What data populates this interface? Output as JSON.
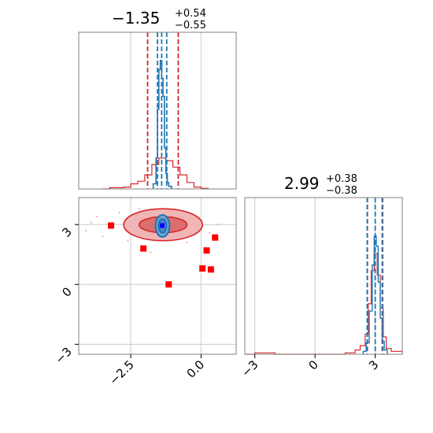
{
  "chart_data": {
    "type": "corner",
    "colors": {
      "primary": "#d62728",
      "secondary": "#1f77b4",
      "marker": "#ff0000",
      "truth": "#0000ff",
      "grid": "#cccccc",
      "frame": "#808080"
    },
    "params": [
      {
        "title_value": "−1.35",
        "title_plus": "+0.54",
        "title_minus": "−0.55",
        "median": -1.35,
        "low": -1.9,
        "high": -0.81
      },
      {
        "title_value": "2.99",
        "title_plus": "+0.38",
        "title_minus": "−0.38",
        "median": 2.99,
        "low": 2.61,
        "high": 3.37
      }
    ],
    "param0_axis": {
      "range": [
        -4.35,
        1.25
      ],
      "ticks": [
        -2.5,
        0.0
      ],
      "tick_labels": [
        "−2.5",
        "0.0"
      ]
    },
    "param1_axis": {
      "range": [
        -3.5,
        4.35
      ],
      "ticks": [
        -3,
        0,
        3
      ],
      "tick_labels": [
        "−3",
        "0",
        "3"
      ]
    },
    "hist_red_param0": {
      "bins": [
        -3.5,
        -3.25,
        -3.0,
        -2.75,
        -2.5,
        -2.25,
        -2.0,
        -1.75,
        -1.5,
        -1.25,
        -1.0,
        -0.75,
        -0.5,
        -0.25,
        0.0,
        0.25
      ],
      "counts": [
        0.0,
        0.01,
        0.01,
        0.015,
        0.04,
        0.06,
        0.11,
        0.19,
        0.24,
        0.22,
        0.17,
        0.11,
        0.05,
        0.015,
        0.005
      ]
    },
    "hist_blue_param0": {
      "bins": [
        -1.7,
        -1.6,
        -1.55,
        -1.5,
        -1.45,
        -1.4,
        -1.35,
        -1.3,
        -1.25,
        -1.2,
        -1.15,
        -1.05
      ],
      "counts": [
        0.04,
        0.24,
        0.62,
        0.93,
        1.0,
        0.86,
        0.72,
        0.32,
        0.12,
        0.05,
        0.02
      ],
      "quantiles": [
        -1.55,
        -1.4,
        -1.22
      ]
    },
    "hist_red_param1": {
      "bins": [
        -3.5,
        -3.0,
        -2.0,
        -1.0,
        0.0,
        1.0,
        1.5,
        2.0,
        2.25,
        2.5,
        2.65,
        2.8,
        2.95,
        3.1,
        3.25,
        3.4,
        3.55,
        3.8,
        4.35
      ],
      "counts": [
        0.0,
        0.01,
        0.0,
        0.0,
        0.0,
        0.0,
        0.01,
        0.03,
        0.06,
        0.14,
        0.35,
        0.58,
        0.7,
        0.55,
        0.32,
        0.12,
        0.04,
        0.02
      ]
    },
    "hist_blue_param1": {
      "bins": [
        2.4,
        2.55,
        2.7,
        2.85,
        2.95,
        3.05,
        3.15,
        3.25,
        3.35,
        3.45,
        3.6
      ],
      "counts": [
        0.02,
        0.08,
        0.3,
        0.62,
        0.82,
        0.75,
        0.5,
        0.25,
        0.09,
        0.03
      ],
      "quantiles": [
        2.6,
        3.0,
        3.35
      ]
    },
    "red_contours": {
      "center": [
        -1.35,
        2.99
      ],
      "levels": [
        {
          "rx": 0.85,
          "ry": 0.4,
          "fill": "#dd6e6e"
        },
        {
          "rx": 1.4,
          "ry": 0.8,
          "fill": "#f0b6b6"
        }
      ]
    },
    "blue_contours": {
      "center": [
        -1.37,
        2.93
      ],
      "levels": [
        {
          "rx": 0.25,
          "ry": 0.55
        },
        {
          "rx": 0.14,
          "ry": 0.35
        }
      ]
    },
    "square_markers": [
      {
        "x": -3.2,
        "y": 2.95
      },
      {
        "x": -2.05,
        "y": 1.8
      },
      {
        "x": -1.15,
        "y": 0.0
      },
      {
        "x": 0.2,
        "y": 1.7
      },
      {
        "x": 0.5,
        "y": 2.35
      },
      {
        "x": 0.05,
        "y": 0.8
      },
      {
        "x": 0.35,
        "y": 0.75
      }
    ],
    "truth_point": {
      "x": -1.38,
      "y": 2.95
    },
    "scatter_points": [
      {
        "x": -4.1,
        "y": 2.7
      },
      {
        "x": -3.7,
        "y": 3.4
      },
      {
        "x": -3.5,
        "y": 2.4
      },
      {
        "x": -2.9,
        "y": 3.6
      },
      {
        "x": -2.6,
        "y": 2.2
      },
      {
        "x": -0.2,
        "y": 3.3
      },
      {
        "x": 0.3,
        "y": 2.6
      },
      {
        "x": -0.5,
        "y": 2.1
      },
      {
        "x": -2.2,
        "y": 3.8
      },
      {
        "x": -3.9,
        "y": 3.1
      },
      {
        "x": 0.6,
        "y": 3.0
      },
      {
        "x": -1.8,
        "y": 1.6
      }
    ]
  }
}
